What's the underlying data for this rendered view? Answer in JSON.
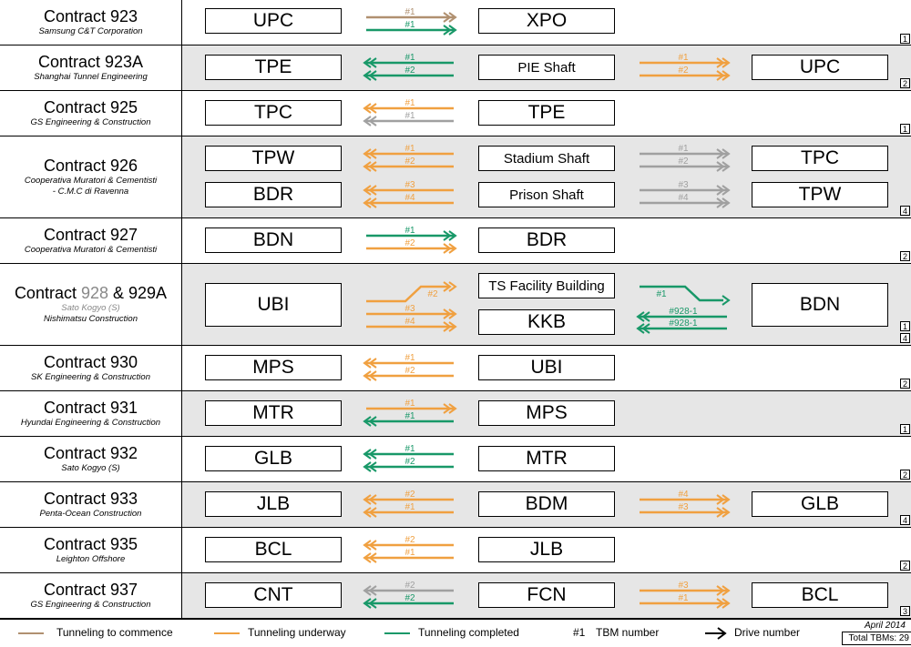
{
  "colors": {
    "commence": "#b09070",
    "underway": "#f0a040",
    "completed": "#189868",
    "gray": "#a0a0a0"
  },
  "rows": [
    {
      "id": "r923",
      "title": "Contract 923",
      "sub": [
        "Samsung C&T Corporation"
      ],
      "count": "1",
      "box1": "UPC",
      "box2": "XPO",
      "arrows1": [
        {
          "label": "#1",
          "dir": "right",
          "color": "commence"
        },
        {
          "label": "#1",
          "dir": "right",
          "color": "completed"
        }
      ]
    },
    {
      "id": "r923a",
      "title": "Contract 923A",
      "sub": [
        "Shanghai Tunnel Engineering"
      ],
      "count": "2",
      "box1": "TPE",
      "box2": "PIE Shaft",
      "box3": "UPC",
      "arrows1": [
        {
          "label": "#1",
          "dir": "left",
          "color": "completed"
        },
        {
          "label": "#2",
          "dir": "left",
          "color": "completed"
        }
      ],
      "arrows2": [
        {
          "label": "#1",
          "dir": "right",
          "color": "underway"
        },
        {
          "label": "#2",
          "dir": "right",
          "color": "underway"
        }
      ]
    },
    {
      "id": "r925",
      "title": "Contract 925",
      "sub": [
        "GS Engineering & Construction"
      ],
      "count": "1",
      "box1": "TPC",
      "box2": "TPE",
      "arrows1": [
        {
          "label": "#1",
          "dir": "left",
          "color": "underway"
        },
        {
          "label": "#1",
          "dir": "left",
          "color": "gray"
        }
      ]
    },
    {
      "id": "r926",
      "title": "Contract 926",
      "sub": [
        "Cooperativa Muratori & Cementisti",
        "- C.M.C di Ravenna"
      ],
      "count": "4",
      "a": {
        "box1": "TPW",
        "box2": "Stadium Shaft",
        "box3": "TPC",
        "arrows1": [
          {
            "label": "#1",
            "dir": "left",
            "color": "underway"
          },
          {
            "label": "#2",
            "dir": "left",
            "color": "underway"
          }
        ],
        "arrows2": [
          {
            "label": "#1",
            "dir": "right",
            "color": "gray"
          },
          {
            "label": "#2",
            "dir": "right",
            "color": "gray"
          }
        ]
      },
      "b": {
        "box1": "BDR",
        "box2": "Prison Shaft",
        "box3": "TPW",
        "arrows1": [
          {
            "label": "#3",
            "dir": "left",
            "color": "underway"
          },
          {
            "label": "#4",
            "dir": "left",
            "color": "underway"
          }
        ],
        "arrows2": [
          {
            "label": "#3",
            "dir": "right",
            "color": "gray"
          },
          {
            "label": "#4",
            "dir": "right",
            "color": "gray"
          }
        ]
      }
    },
    {
      "id": "r927",
      "title": "Contract 927",
      "sub": [
        "Cooperativa Muratori & Cementisti"
      ],
      "count": "2",
      "box1": "BDN",
      "box2": "BDR",
      "arrows1": [
        {
          "label": "#1",
          "dir": "right",
          "color": "completed"
        },
        {
          "label": "#2",
          "dir": "right",
          "color": "underway"
        }
      ]
    },
    {
      "id": "r928",
      "title_a": "Contract ",
      "title_b": "928",
      "title_c": " & 929A",
      "sub_gray": "Sato Kogyo (S)",
      "sub": [
        "Nishimatsu Construction"
      ],
      "count_a": "1",
      "count_b": "4",
      "box1": "UBI",
      "box2a": "TS Facility Building",
      "box2b": "KKB",
      "box3": "BDN",
      "arrows1": [
        {
          "label": "#2",
          "dir": "right",
          "color": "underway"
        },
        {
          "label": "#3",
          "dir": "right",
          "color": "underway"
        },
        {
          "label": "#4",
          "dir": "right",
          "color": "underway"
        }
      ],
      "arrows2": [
        {
          "label": "#1",
          "dir": "right",
          "color": "completed"
        },
        {
          "label": "#928-1",
          "dir": "left",
          "color": "completed"
        },
        {
          "label": "#928-1",
          "dir": "left",
          "color": "completed"
        }
      ]
    },
    {
      "id": "r930",
      "title": "Contract 930",
      "sub": [
        "SK Engineering & Construction"
      ],
      "count": "2",
      "box1": "MPS",
      "box2": "UBI",
      "arrows1": [
        {
          "label": "#1",
          "dir": "left",
          "color": "underway"
        },
        {
          "label": "#2",
          "dir": "left",
          "color": "underway"
        }
      ]
    },
    {
      "id": "r931",
      "title": "Contract 931",
      "sub": [
        "Hyundai Engineering & Construction"
      ],
      "count": "1",
      "box1": "MTR",
      "box2": "MPS",
      "arrows1": [
        {
          "label": "#1",
          "dir": "right",
          "color": "underway"
        },
        {
          "label": "#1",
          "dir": "left",
          "color": "completed"
        }
      ]
    },
    {
      "id": "r932",
      "title": "Contract 932",
      "sub": [
        "Sato Kogyo (S)"
      ],
      "count": "2",
      "box1": "GLB",
      "box2": "MTR",
      "arrows1": [
        {
          "label": "#1",
          "dir": "left",
          "color": "completed"
        },
        {
          "label": "#2",
          "dir": "left",
          "color": "completed"
        }
      ]
    },
    {
      "id": "r933",
      "title": "Contract 933",
      "sub": [
        "Penta-Ocean Construction"
      ],
      "count": "4",
      "box1": "JLB",
      "box2": "BDM",
      "box3": "GLB",
      "arrows1": [
        {
          "label": "#2",
          "dir": "left",
          "color": "underway"
        },
        {
          "label": "#1",
          "dir": "left",
          "color": "underway"
        }
      ],
      "arrows2": [
        {
          "label": "#4",
          "dir": "right",
          "color": "underway"
        },
        {
          "label": "#3",
          "dir": "right",
          "color": "underway"
        }
      ]
    },
    {
      "id": "r935",
      "title": "Contract 935",
      "sub": [
        "Leighton Offshore"
      ],
      "count": "2",
      "box1": "BCL",
      "box2": "JLB",
      "arrows1": [
        {
          "label": "#2",
          "dir": "left",
          "color": "underway"
        },
        {
          "label": "#1",
          "dir": "left",
          "color": "underway"
        }
      ]
    },
    {
      "id": "r937",
      "title": "Contract 937",
      "sub": [
        "GS Engineering & Construction"
      ],
      "count": "3",
      "box1": "CNT",
      "box2": "FCN",
      "box3": "BCL",
      "arrows1": [
        {
          "label": "#2",
          "dir": "left",
          "color": "gray"
        },
        {
          "label": "#2",
          "dir": "left",
          "color": "completed"
        }
      ],
      "arrows2": [
        {
          "label": "#3",
          "dir": "right",
          "color": "underway"
        },
        {
          "label": "#1",
          "dir": "right",
          "color": "underway"
        }
      ]
    }
  ],
  "legend": {
    "commence": "Tunneling to commence",
    "underway": "Tunneling underway",
    "completed": "Tunneling completed",
    "tbm_symbol": "#1",
    "tbm": "TBM number",
    "drive": "Drive number"
  },
  "date": "April 2014",
  "total": "Total TBMs: 29"
}
